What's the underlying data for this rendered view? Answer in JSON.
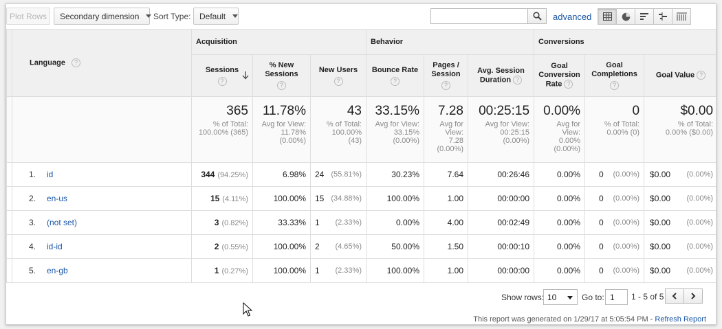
{
  "toolbar": {
    "plot_rows": "Plot Rows",
    "secondary_dimension": "Secondary dimension",
    "sort_type_label": "Sort Type:",
    "sort_type_value": "Default",
    "search_value": "",
    "advanced": "advanced",
    "view_icons": [
      "table-view-icon",
      "pie-view-icon",
      "performance-view-icon",
      "comparison-view-icon",
      "pivot-view-icon"
    ]
  },
  "table": {
    "dimension_header": "Language",
    "groups": {
      "acquisition": "Acquisition",
      "behavior": "Behavior",
      "conversions": "Conversions"
    },
    "columns": {
      "sessions": "Sessions",
      "new_sessions": "% New Sessions",
      "new_users": "New Users",
      "bounce_rate": "Bounce Rate",
      "pages_session": "Pages / Session",
      "avg_duration": "Avg. Session Duration",
      "goal_conv_rate": "Goal Conversion Rate",
      "goal_completions": "Goal Completions",
      "goal_value": "Goal Value"
    },
    "totals": {
      "sessions": {
        "value": "365",
        "l1": "% of Total:",
        "l2": "100.00% (365)"
      },
      "new_sessions": {
        "value": "11.78%",
        "l1": "Avg for View:",
        "l2": "11.78%",
        "l3": "(0.00%)"
      },
      "new_users": {
        "value": "43",
        "l1": "% of Total:",
        "l2": "100.00%",
        "l3": "(43)"
      },
      "bounce_rate": {
        "value": "33.15%",
        "l1": "Avg for View:",
        "l2": "33.15%",
        "l3": "(0.00%)"
      },
      "pages_session": {
        "value": "7.28",
        "l1": "Avg for",
        "l2": "View:",
        "l3": "7.28",
        "l4": "(0.00%)"
      },
      "avg_duration": {
        "value": "00:25:15",
        "l1": "Avg for View:",
        "l2": "00:25:15",
        "l3": "(0.00%)"
      },
      "goal_conv_rate": {
        "value": "0.00%",
        "l1": "Avg for",
        "l2": "View:",
        "l3": "0.00%",
        "l4": "(0.00%)"
      },
      "goal_completions": {
        "value": "0",
        "l1": "% of Total:",
        "l2": "0.00% (0)"
      },
      "goal_value": {
        "value": "$0.00",
        "l1": "% of Total:",
        "l2": "0.00% ($0.00)"
      }
    },
    "rows": [
      {
        "idx": "1.",
        "lang": "id",
        "sessions": "344",
        "sessions_pct": "(94.25%)",
        "new_sessions": "6.98%",
        "new_users": "24",
        "new_users_pct": "(55.81%)",
        "bounce": "30.23%",
        "pages": "7.64",
        "duration": "00:26:46",
        "conv_rate": "0.00%",
        "completions": "0",
        "completions_pct": "(0.00%)",
        "value": "$0.00",
        "value_pct": "(0.00%)"
      },
      {
        "idx": "2.",
        "lang": "en-us",
        "sessions": "15",
        "sessions_pct": "(4.11%)",
        "new_sessions": "100.00%",
        "new_users": "15",
        "new_users_pct": "(34.88%)",
        "bounce": "100.00%",
        "pages": "1.00",
        "duration": "00:00:00",
        "conv_rate": "0.00%",
        "completions": "0",
        "completions_pct": "(0.00%)",
        "value": "$0.00",
        "value_pct": "(0.00%)"
      },
      {
        "idx": "3.",
        "lang": "(not set)",
        "sessions": "3",
        "sessions_pct": "(0.82%)",
        "new_sessions": "33.33%",
        "new_users": "1",
        "new_users_pct": "(2.33%)",
        "bounce": "0.00%",
        "pages": "4.00",
        "duration": "00:02:49",
        "conv_rate": "0.00%",
        "completions": "0",
        "completions_pct": "(0.00%)",
        "value": "$0.00",
        "value_pct": "(0.00%)"
      },
      {
        "idx": "4.",
        "lang": "id-id",
        "sessions": "2",
        "sessions_pct": "(0.55%)",
        "new_sessions": "100.00%",
        "new_users": "2",
        "new_users_pct": "(4.65%)",
        "bounce": "50.00%",
        "pages": "1.50",
        "duration": "00:00:10",
        "conv_rate": "0.00%",
        "completions": "0",
        "completions_pct": "(0.00%)",
        "value": "$0.00",
        "value_pct": "(0.00%)"
      },
      {
        "idx": "5.",
        "lang": "en-gb",
        "sessions": "1",
        "sessions_pct": "(0.27%)",
        "new_sessions": "100.00%",
        "new_users": "1",
        "new_users_pct": "(2.33%)",
        "bounce": "100.00%",
        "pages": "1.00",
        "duration": "00:00:00",
        "conv_rate": "0.00%",
        "completions": "0",
        "completions_pct": "(0.00%)",
        "value": "$0.00",
        "value_pct": "(0.00%)"
      }
    ]
  },
  "footer": {
    "show_rows_label": "Show rows:",
    "show_rows_value": "10",
    "goto_label": "Go to:",
    "goto_value": "1",
    "range": "1 - 5 of 5",
    "generated": "This report was generated on 1/29/17 at 5:05:54 PM -",
    "refresh": "Refresh Report"
  }
}
